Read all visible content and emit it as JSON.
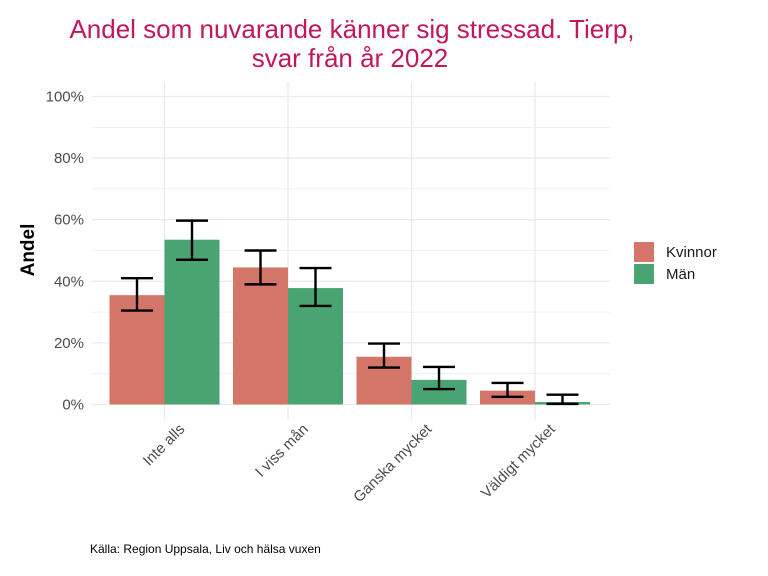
{
  "chart_data": {
    "type": "bar",
    "title_lines": [
      "Andel som nuvarande känner sig stressad. Tierp,",
      "svar från år 2022"
    ],
    "ylabel": "Andel",
    "xlabel": "",
    "categories": [
      "Inte alls",
      "I viss mån",
      "Ganska mycket",
      "Väldigt mycket"
    ],
    "ylim": [
      0,
      1
    ],
    "yticks": [
      0,
      0.2,
      0.4,
      0.6,
      0.8,
      1.0
    ],
    "ytick_labels": [
      "0%",
      "20%",
      "40%",
      "60%",
      "80%",
      "100%"
    ],
    "series": [
      {
        "name": "Kvinnor",
        "color": "#d4756a",
        "values": [
          0.355,
          0.445,
          0.155,
          0.045
        ],
        "err_low": [
          0.305,
          0.39,
          0.12,
          0.025
        ],
        "err_high": [
          0.41,
          0.5,
          0.198,
          0.07
        ]
      },
      {
        "name": "Män",
        "color": "#4aa372",
        "values": [
          0.535,
          0.378,
          0.08,
          0.008
        ],
        "err_low": [
          0.47,
          0.32,
          0.05,
          0.002
        ],
        "err_high": [
          0.597,
          0.443,
          0.122,
          0.032
        ]
      }
    ],
    "grid": true,
    "legend_position": "right",
    "caption": "Källa: Region Uppsala, Liv och hälsa vuxen"
  },
  "colors": {
    "title": "#c2185b",
    "grid": "#ebebeb",
    "errorbar": "#000000"
  }
}
